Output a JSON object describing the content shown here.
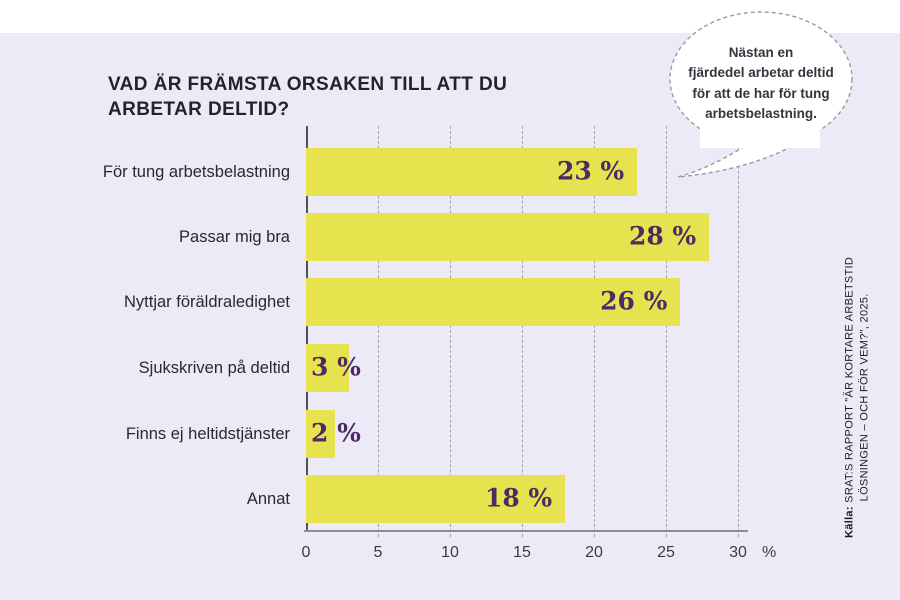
{
  "page": {
    "title": "VAD ÄR FRÄMSTA ORSAKEN TILL ATT DU\nARBETAR DELTID?"
  },
  "bubble": {
    "text": "Nästan en\nfjärdedel arbetar deltid\nför att de har för tung\narbetsbelastning."
  },
  "source": {
    "prefix": "Källa:",
    "line1": " SRAT:S RAPPORT \"ÄR KORTARE ARBETSTID",
    "line2": "LÖSNINGEN – OCH FÖR VEM?\", 2025."
  },
  "chart_data": {
    "type": "bar",
    "orientation": "horizontal",
    "title": "VAD ÄR FRÄMSTA ORSAKEN TILL ATT DU ARBETAR DELTID?",
    "categories": [
      "För tung arbetsbelastning",
      "Passar mig bra",
      "Nyttjar föräldraledighet",
      "Sjukskriven på deltid",
      "Finns ej heltidstjänster",
      "Annat"
    ],
    "values": [
      23,
      28,
      26,
      3,
      2,
      18
    ],
    "value_labels": [
      "23 %",
      "28 %",
      "26 %",
      "3 %",
      "2 %",
      "18 %"
    ],
    "xlim": [
      0,
      30
    ],
    "xticks": [
      "0",
      "5",
      "10",
      "15",
      "20",
      "25",
      "30"
    ],
    "x_unit": "%",
    "grid": "dashed-vertical-every-5",
    "legend": "none",
    "annotation": "Nästan en fjärdedel arbetar deltid för att de har för tung arbetsbelastning.",
    "colors": {
      "panel_background": "#EDEAF7",
      "bar": "#E7E34E",
      "value_text": "#4B2B63",
      "title_text": "#26222A",
      "gridline": "#A6A3B1"
    }
  }
}
